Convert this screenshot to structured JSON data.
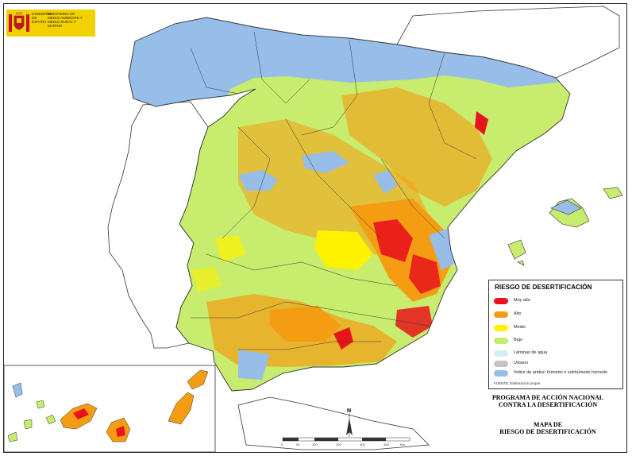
{
  "logo": {
    "gov_text": "GOBIERNO DE ESPAÑA",
    "ministry_text": "MINISTERIO DE MEDIO AMBIENTE Y MEDIO RURAL Y MARINO"
  },
  "legend": {
    "title": "RIESGO DE DESERTIFICACIÓN",
    "items": [
      {
        "label": "Muy alto",
        "color": "#e8141c"
      },
      {
        "label": "Alto",
        "color": "#f59d12"
      },
      {
        "label": "Medio",
        "color": "#fff200"
      },
      {
        "label": "Bajo",
        "color": "#c7ec6e"
      },
      {
        "label": "Láminas de agua",
        "color": "#d3eef6"
      },
      {
        "label": "Urbano",
        "color": "#c4c4c4"
      },
      {
        "label": "Índice de aridez: húmedo o subhúmedo húmedo",
        "color": "#97bde9"
      }
    ],
    "source": "FUENTE: Elaboración propia"
  },
  "program_title": {
    "line1": "PROGRAMA DE ACCIÓN NACIONAL",
    "line2": "CONTRA LA DESERTIFICACIÓN"
  },
  "map_title": {
    "line1": "MAPA DE",
    "line2": "RIESGO DE DESERTIFICACIÓN"
  },
  "north_arrow": "N",
  "scale_bar": {
    "ticks": [
      "0",
      "50",
      "100",
      "200",
      "300",
      "400"
    ],
    "unit": "Km"
  }
}
